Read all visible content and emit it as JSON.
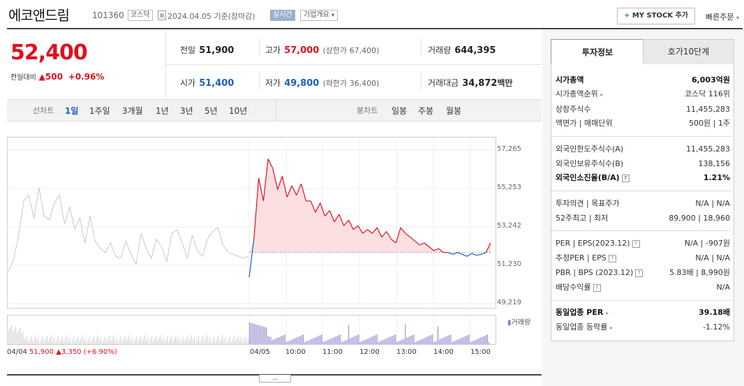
{
  "header": {
    "name": "에코앤드림",
    "code": "101360",
    "market": "코스닥",
    "date": "2024.04.05 기준(장마감)",
    "live": "실시간",
    "overview": "기업개요",
    "my_stock": "MY STOCK 추가",
    "quick_order": "빠른주문"
  },
  "price": {
    "current": "52,400",
    "change_label": "전일대비",
    "change": "500",
    "change_pct": "+0.96%"
  },
  "summary": {
    "prev_label": "전일",
    "prev": "51,900",
    "high_label": "고가",
    "high": "57,000",
    "upper_label": "(상한가 67,400)",
    "volume_label": "거래량",
    "volume": "644,395",
    "open_label": "시가",
    "open": "51,400",
    "low_label": "저가",
    "low": "49,800",
    "lower_label": "(하한가 36,400)",
    "amount_label": "거래대금",
    "amount": "34,872",
    "amount_unit": "백만"
  },
  "period": {
    "line_label": "선차트",
    "line_items": [
      "1일",
      "1주일",
      "3개월",
      "1년",
      "3년",
      "5년",
      "10년"
    ],
    "candle_label": "봉차트",
    "candle_items": [
      "일봉",
      "주봉",
      "월봉"
    ]
  },
  "chart_data": {
    "type": "line",
    "y_ticks": [
      "57,265",
      "55,253",
      "53,242",
      "51,230",
      "49,219"
    ],
    "ylim": [
      49219,
      57265
    ],
    "x_ticks": [
      "04/05",
      "10:00",
      "11:00",
      "12:00",
      "13:00",
      "14:00",
      "15:00"
    ],
    "prev_day_label": "04/04",
    "prev_close": 51900,
    "volume_legend": "거래량",
    "series": [
      {
        "values": [
          50900,
          51500,
          52800,
          54600,
          54900,
          53700,
          55300,
          53800,
          53600,
          54500,
          54900,
          53400,
          54300,
          53100,
          53700,
          52400,
          53800,
          52500,
          52100,
          51900,
          52400,
          51700,
          51600,
          52500,
          51800,
          51300,
          52900,
          52100,
          51600,
          52600,
          52200,
          51400,
          52900,
          53100,
          52400,
          51600,
          52800,
          52000,
          51700,
          52600,
          53000,
          53200,
          52300,
          51900,
          51800,
          51700,
          51600,
          51700
        ]
      },
      {
        "values": [
          50600,
          52600,
          55800,
          54600,
          56800,
          56300,
          55200,
          55900,
          54800,
          55400,
          54900,
          55500,
          54600,
          54600,
          54000,
          54500,
          53800,
          54100,
          53500,
          53900,
          53300,
          53600,
          53100,
          53300,
          52900,
          53100,
          52900,
          53200,
          52700,
          53000,
          52600,
          52400,
          53200,
          52900,
          52700,
          52500,
          52300,
          52400,
          52200,
          52000,
          52100,
          51900,
          51900,
          51800,
          51900,
          51800,
          51700,
          51850,
          51750,
          51800,
          51900,
          52400
        ]
      }
    ]
  },
  "footer": {
    "prev_date": "04/04",
    "prev_close": "51,900",
    "prev_change": "3,350",
    "prev_pct": "(+6.90%)"
  },
  "side": {
    "tab_active": "투자정보",
    "tab_other": "호가10단계",
    "rows": [
      {
        "k": "시가총액",
        "v": "6,003억원"
      },
      {
        "k": "시가총액순위",
        "v": "코스닥 116위"
      },
      {
        "k": "상장주식수",
        "v": "11,455,283"
      },
      {
        "k": "액면가 | 매매단위",
        "v": "500원 | 1주"
      },
      {
        "k": "외국인한도주식수(A)",
        "v": "11,455,283"
      },
      {
        "k": "외국인보유주식수(B)",
        "v": "138,156"
      },
      {
        "k": "외국인소진율(B/A)",
        "v": "1.21%"
      },
      {
        "k": "투자의견 | 목표주가",
        "v": "N/A | N/A"
      },
      {
        "k": "52주최고 | 최저",
        "v": "89,900 | 18,960"
      },
      {
        "k": "PER | EPS(2023.12)",
        "v": "N/A | -907원"
      },
      {
        "k": "추정PER | EPS",
        "v": "N/A | N/A"
      },
      {
        "k": "PBR | BPS (2023.12)",
        "v": "5.83배 | 8,990원"
      },
      {
        "k": "배당수익률",
        "v": "N/A"
      },
      {
        "k": "동일업종 PER",
        "v": "39.18배"
      },
      {
        "k": "동일업종 등락률",
        "v": "-1.12%"
      }
    ]
  },
  "colors": {
    "up": "#e0101e",
    "down": "#1a5fc8",
    "volume": "#8a7fc9"
  }
}
